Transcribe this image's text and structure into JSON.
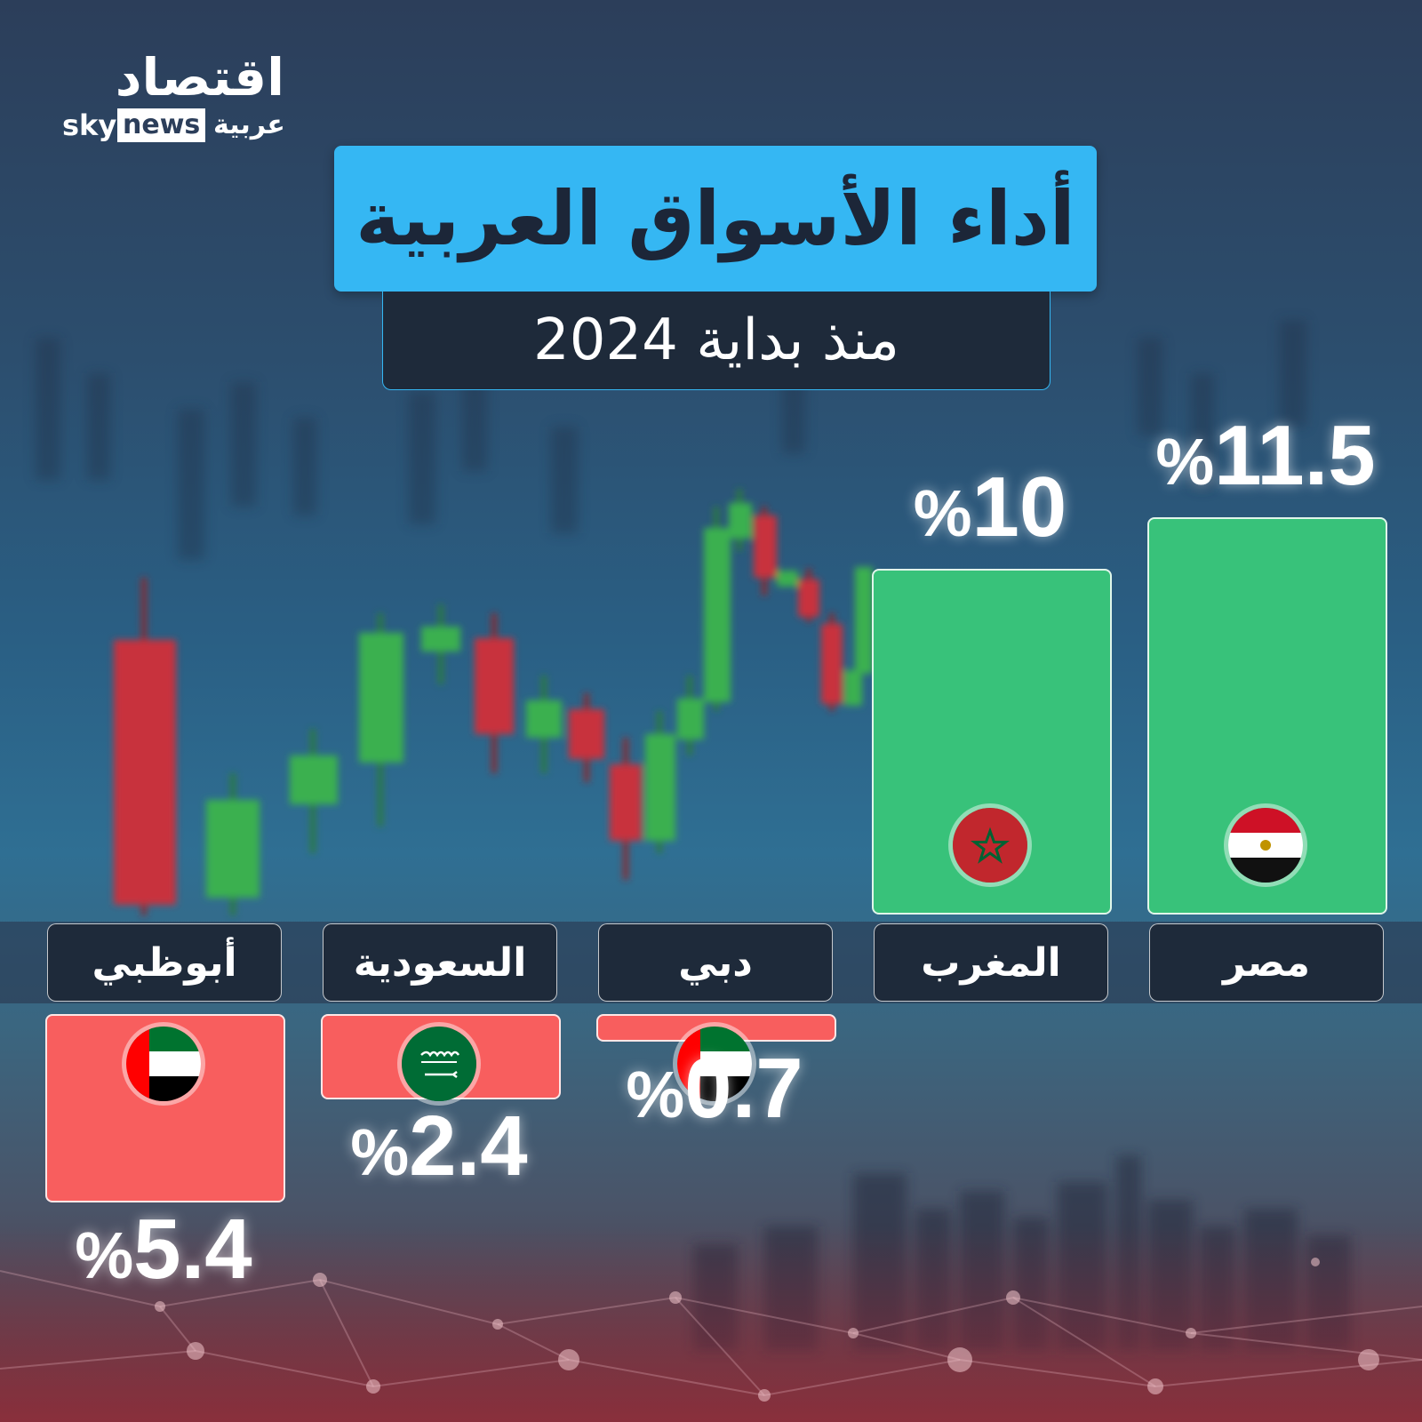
{
  "brand": {
    "name_ar": "اقتصاد",
    "sky": "sky",
    "news": "news",
    "arabia": "عربية"
  },
  "header": {
    "title": "أداء الأسواق العربية",
    "subtitle": "منذ بداية 2024"
  },
  "colors": {
    "positive": "#38c27a",
    "negative": "#f85e5e",
    "title_bg": "#35b7f3",
    "label_bg": "#1e2a3a"
  },
  "chart_data": {
    "type": "bar",
    "title": "أداء الأسواق العربية",
    "subtitle": "منذ بداية 2024",
    "unit": "%",
    "categories": [
      "مصر",
      "المغرب",
      "دبي",
      "السعودية",
      "أبوظبي"
    ],
    "values": [
      11.5,
      10,
      -0.7,
      -2.4,
      -5.4
    ],
    "display_values": [
      "11.5",
      "10",
      "0.7",
      "2.4",
      "5.4"
    ],
    "percent_sign": "%",
    "flags": [
      "egypt-flag-icon",
      "morocco-flag-icon",
      "uae-flag-icon",
      "saudi-flag-icon",
      "uae-flag-icon"
    ],
    "ylim": [
      -5.4,
      11.5
    ]
  }
}
